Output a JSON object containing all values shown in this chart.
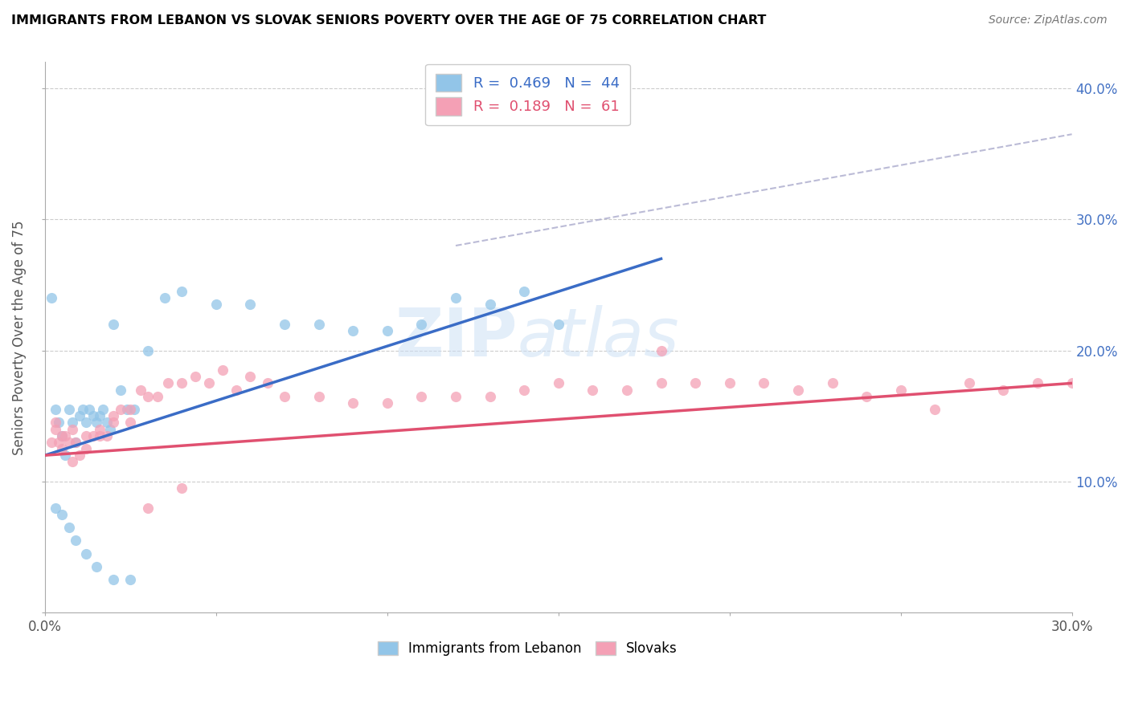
{
  "title": "IMMIGRANTS FROM LEBANON VS SLOVAK SENIORS POVERTY OVER THE AGE OF 75 CORRELATION CHART",
  "source": "Source: ZipAtlas.com",
  "ylabel": "Seniors Poverty Over the Age of 75",
  "xlim": [
    0.0,
    0.3
  ],
  "ylim": [
    0.0,
    0.42
  ],
  "xtick_positions": [
    0.0,
    0.05,
    0.1,
    0.15,
    0.2,
    0.25,
    0.3
  ],
  "xtick_labels": [
    "0.0%",
    "",
    "",
    "",
    "",
    "",
    "30.0%"
  ],
  "ytick_positions": [
    0.0,
    0.1,
    0.2,
    0.3,
    0.4
  ],
  "ytick_labels": [
    "",
    "10.0%",
    "20.0%",
    "30.0%",
    "40.0%"
  ],
  "legend_r1": "R =  0.469",
  "legend_n1": "N =  44",
  "legend_r2": "R =  0.189",
  "legend_n2": "N =  61",
  "color_lebanon": "#92C5E8",
  "color_slovak": "#F4A0B5",
  "color_lebanon_line": "#3A6CC6",
  "color_slovak_line": "#E05070",
  "watermark_zip": "ZIP",
  "watermark_atlas": "atlas",
  "leb_line_x": [
    0.0,
    0.18
  ],
  "leb_line_y": [
    0.12,
    0.27
  ],
  "slo_line_x": [
    0.0,
    0.3
  ],
  "slo_line_y": [
    0.12,
    0.175
  ],
  "dash_line_x": [
    0.12,
    0.3
  ],
  "dash_line_y": [
    0.28,
    0.365
  ],
  "lebanon_x": [
    0.002,
    0.003,
    0.004,
    0.005,
    0.006,
    0.007,
    0.008,
    0.009,
    0.01,
    0.011,
    0.012,
    0.013,
    0.014,
    0.015,
    0.016,
    0.017,
    0.018,
    0.019,
    0.02,
    0.022,
    0.024,
    0.026,
    0.03,
    0.035,
    0.04,
    0.05,
    0.06,
    0.07,
    0.08,
    0.09,
    0.1,
    0.11,
    0.12,
    0.13,
    0.14,
    0.15,
    0.003,
    0.005,
    0.007,
    0.009,
    0.012,
    0.015,
    0.02,
    0.025
  ],
  "lebanon_y": [
    0.24,
    0.155,
    0.145,
    0.135,
    0.12,
    0.155,
    0.145,
    0.13,
    0.15,
    0.155,
    0.145,
    0.155,
    0.15,
    0.145,
    0.15,
    0.155,
    0.145,
    0.14,
    0.22,
    0.17,
    0.155,
    0.155,
    0.2,
    0.24,
    0.245,
    0.235,
    0.235,
    0.22,
    0.22,
    0.215,
    0.215,
    0.22,
    0.24,
    0.235,
    0.245,
    0.22,
    0.08,
    0.075,
    0.065,
    0.055,
    0.045,
    0.035,
    0.025,
    0.025
  ],
  "slovak_x": [
    0.002,
    0.003,
    0.004,
    0.005,
    0.006,
    0.007,
    0.008,
    0.009,
    0.01,
    0.012,
    0.014,
    0.016,
    0.018,
    0.02,
    0.022,
    0.025,
    0.028,
    0.03,
    0.033,
    0.036,
    0.04,
    0.044,
    0.048,
    0.052,
    0.056,
    0.06,
    0.065,
    0.07,
    0.08,
    0.09,
    0.1,
    0.11,
    0.12,
    0.13,
    0.14,
    0.15,
    0.16,
    0.17,
    0.18,
    0.19,
    0.2,
    0.21,
    0.22,
    0.23,
    0.24,
    0.25,
    0.26,
    0.27,
    0.28,
    0.29,
    0.3,
    0.003,
    0.005,
    0.008,
    0.012,
    0.016,
    0.02,
    0.025,
    0.03,
    0.04,
    0.18
  ],
  "slovak_y": [
    0.13,
    0.14,
    0.13,
    0.135,
    0.135,
    0.13,
    0.14,
    0.13,
    0.12,
    0.135,
    0.135,
    0.14,
    0.135,
    0.15,
    0.155,
    0.155,
    0.17,
    0.165,
    0.165,
    0.175,
    0.175,
    0.18,
    0.175,
    0.185,
    0.17,
    0.18,
    0.175,
    0.165,
    0.165,
    0.16,
    0.16,
    0.165,
    0.165,
    0.165,
    0.17,
    0.175,
    0.17,
    0.17,
    0.175,
    0.175,
    0.175,
    0.175,
    0.17,
    0.175,
    0.165,
    0.17,
    0.155,
    0.175,
    0.17,
    0.175,
    0.175,
    0.145,
    0.125,
    0.115,
    0.125,
    0.135,
    0.145,
    0.145,
    0.08,
    0.095,
    0.2
  ]
}
